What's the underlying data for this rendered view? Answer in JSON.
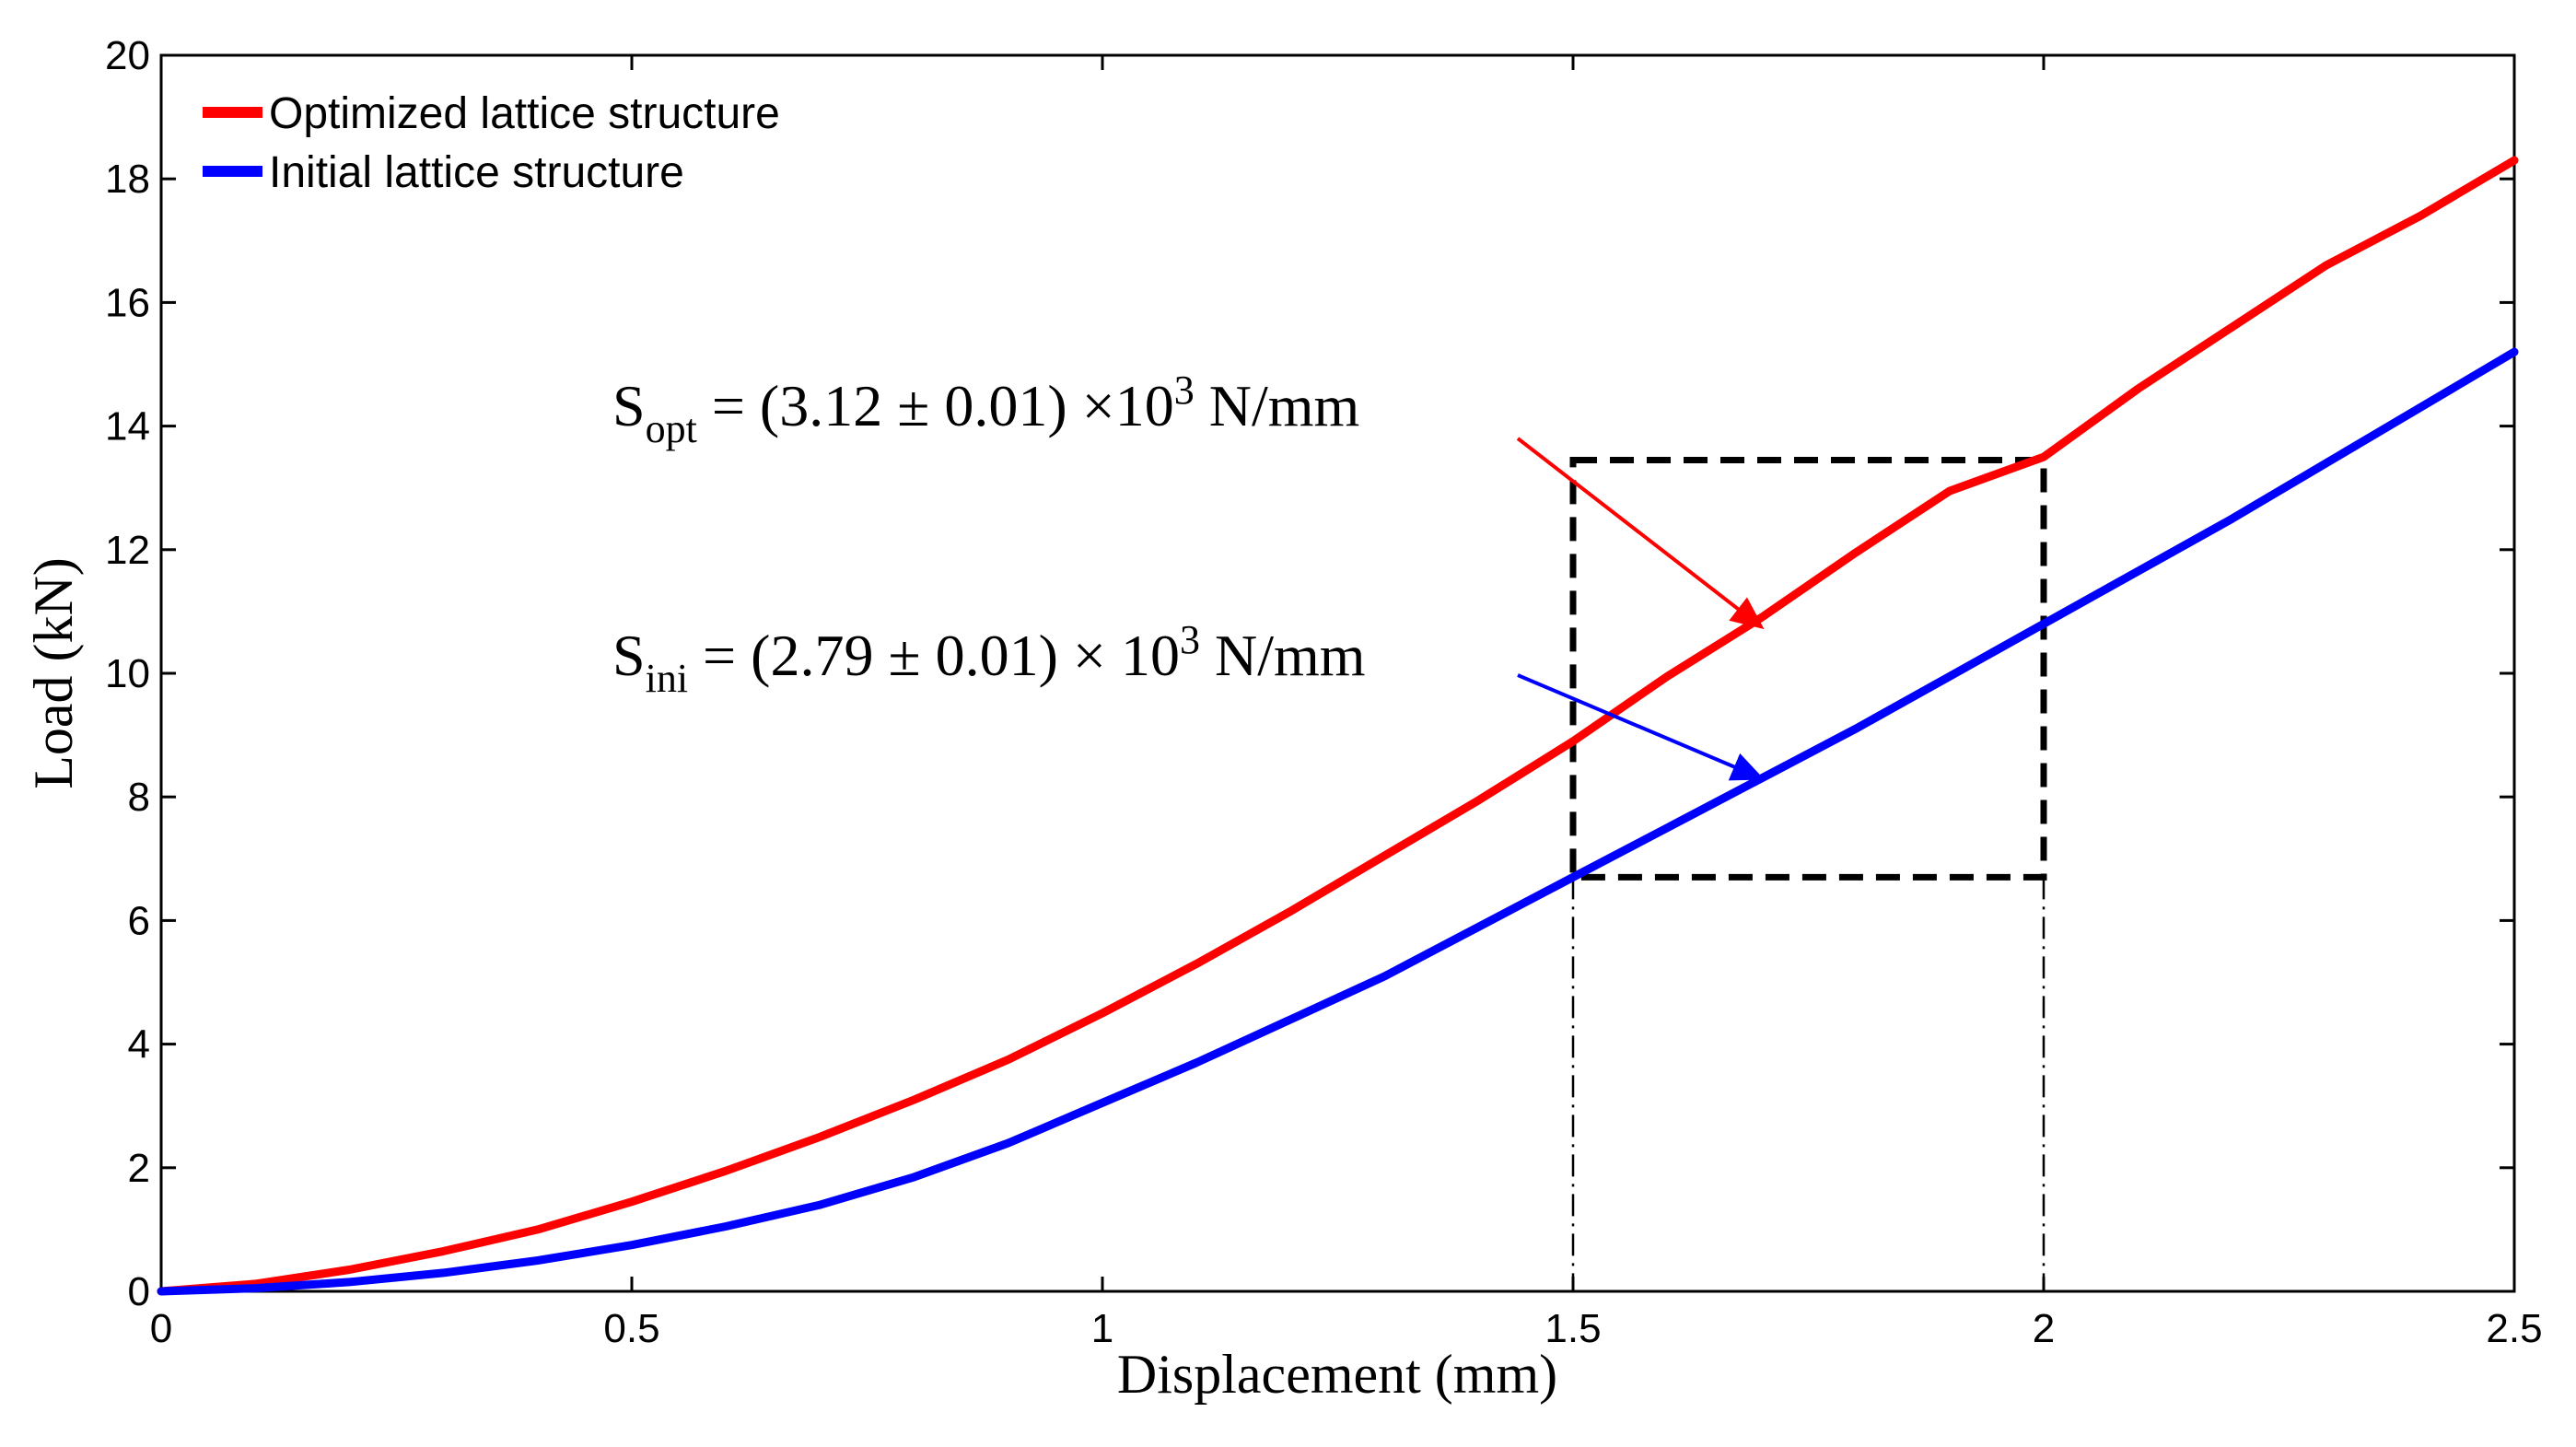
{
  "chart_data": {
    "type": "line",
    "title": "",
    "xlabel": "Displacement (mm)",
    "ylabel": "Load (kN)",
    "xlim": [
      0,
      2.5
    ],
    "ylim": [
      0,
      20
    ],
    "x_ticks": [
      0,
      0.5,
      1,
      1.5,
      2,
      2.5
    ],
    "x_tick_labels": [
      "0",
      "0.5",
      "1",
      "1.5",
      "2",
      "2.5"
    ],
    "y_ticks": [
      0,
      2,
      4,
      6,
      8,
      10,
      12,
      14,
      16,
      18,
      20
    ],
    "y_tick_labels": [
      "0",
      "2",
      "4",
      "6",
      "8",
      "10",
      "12",
      "14",
      "16",
      "18",
      "20"
    ],
    "grid": false,
    "legend": "top-left",
    "series": [
      {
        "name": "Optimized lattice structure",
        "color": "#ff0000",
        "x": [
          0,
          0.1,
          0.2,
          0.3,
          0.4,
          0.5,
          0.6,
          0.7,
          0.8,
          0.9,
          1.0,
          1.1,
          1.2,
          1.3,
          1.4,
          1.5,
          1.6,
          1.7,
          1.8,
          1.9,
          2.0,
          2.1,
          2.2,
          2.3,
          2.4,
          2.5
        ],
        "y": [
          0,
          0.12,
          0.35,
          0.65,
          1.0,
          1.45,
          1.95,
          2.5,
          3.1,
          3.75,
          4.5,
          5.3,
          6.15,
          7.05,
          7.95,
          8.9,
          9.95,
          10.9,
          11.95,
          12.95,
          13.5,
          14.6,
          15.6,
          16.6,
          17.4,
          18.3
        ]
      },
      {
        "name": "Initial lattice structure",
        "color": "#0000ff",
        "x": [
          0,
          0.1,
          0.2,
          0.3,
          0.4,
          0.5,
          0.6,
          0.7,
          0.8,
          0.9,
          1.0,
          1.1,
          1.2,
          1.3,
          1.4,
          1.5,
          1.6,
          1.7,
          1.8,
          1.9,
          2.0,
          2.1,
          2.2,
          2.3,
          2.4,
          2.5
        ],
        "y": [
          0,
          0.05,
          0.15,
          0.3,
          0.5,
          0.75,
          1.05,
          1.4,
          1.85,
          2.4,
          3.05,
          3.7,
          4.4,
          5.1,
          5.9,
          6.7,
          7.5,
          8.3,
          9.1,
          9.95,
          10.8,
          11.65,
          12.5,
          13.4,
          14.3,
          15.2
        ]
      }
    ],
    "annotations": {
      "box": {
        "x": [
          1.5,
          2.0
        ],
        "y": [
          6.7,
          13.45
        ],
        "style": "dashed",
        "color": "#000000"
      },
      "guide_lines_x": [
        1.5,
        2.0
      ],
      "s_opt": {
        "symbol": "S",
        "subscript": "opt",
        "text": " = (3.12 ± 0.01) ×10",
        "superscript": "3",
        "unit": " N/mm",
        "color": "#ff0000",
        "arrow_to": [
          1.7,
          10.75
        ]
      },
      "s_ini": {
        "symbol": "S",
        "subscript": "ini",
        "text": " = (2.79 ± 0.01) × 10",
        "superscript": "3",
        "unit": " N/mm",
        "color": "#0000ff",
        "arrow_to": [
          1.7,
          8.3
        ]
      }
    }
  }
}
